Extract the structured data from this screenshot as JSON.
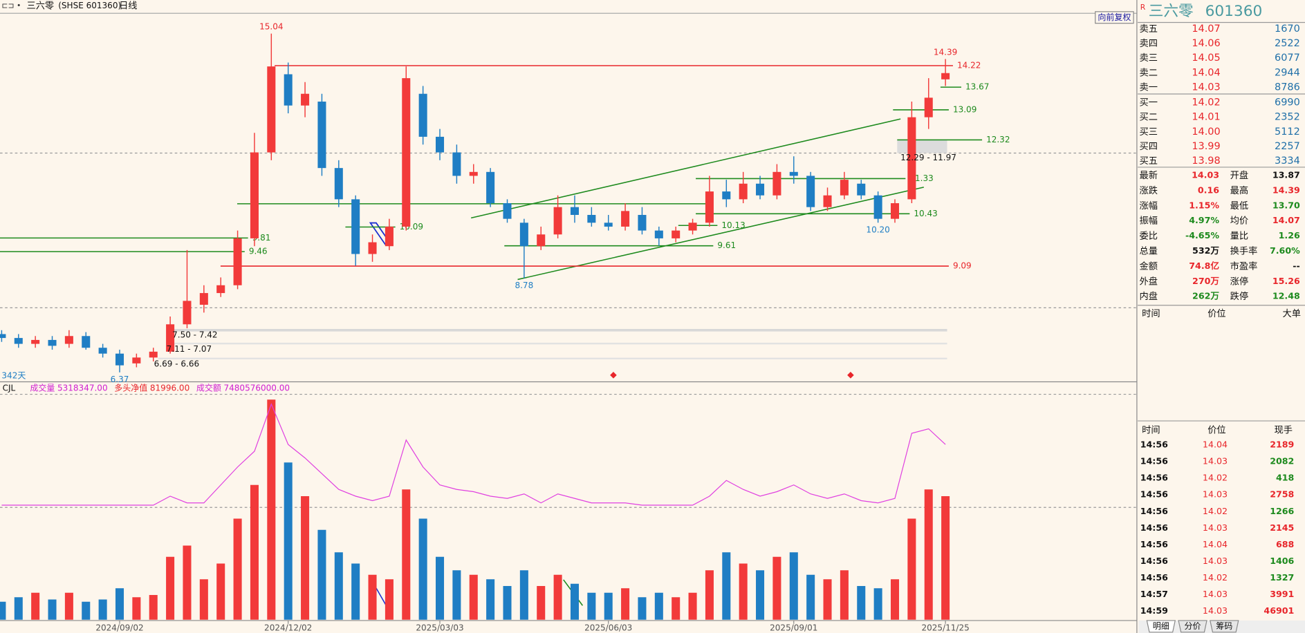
{
  "toolbar": {
    "name": "三六零",
    "code": "(SHSE 601360)",
    "period": "日线",
    "adjust": "向前复权"
  },
  "chart_data": {
    "type": "candlestick",
    "categories": [
      null,
      null,
      null,
      null,
      null,
      null,
      null,
      "2024/09/02",
      null,
      null,
      null,
      null,
      null,
      null,
      null,
      null,
      null,
      "2024/12/02",
      null,
      null,
      null,
      null,
      null,
      null,
      null,
      null,
      "2025/03/03",
      null,
      null,
      null,
      null,
      null,
      null,
      null,
      null,
      null,
      "2025/06/03",
      null,
      null,
      null,
      null,
      null,
      null,
      null,
      null,
      null,
      null,
      "2025/09/01",
      null,
      null,
      null,
      null,
      null,
      null,
      null,
      null,
      "2025/11/25"
    ],
    "open": [
      7.35,
      7.25,
      7.1,
      7.2,
      7.1,
      7.3,
      7.0,
      6.85,
      6.6,
      6.75,
      6.9,
      7.6,
      8.1,
      8.4,
      8.6,
      9.8,
      12.0,
      14.0,
      13.2,
      13.3,
      11.6,
      10.8,
      9.4,
      9.6,
      10.1,
      13.5,
      12.4,
      12.0,
      11.4,
      11.5,
      10.7,
      10.2,
      9.6,
      9.9,
      10.6,
      10.4,
      10.2,
      10.1,
      10.4,
      10.0,
      9.8,
      10.0,
      10.2,
      11.0,
      10.8,
      11.2,
      10.9,
      11.5,
      11.4,
      10.6,
      10.9,
      11.2,
      10.9,
      10.3,
      10.8,
      12.9,
      13.87
    ],
    "high": [
      7.45,
      7.35,
      7.3,
      7.3,
      7.45,
      7.4,
      7.1,
      6.95,
      6.85,
      7.0,
      7.8,
      9.5,
      8.6,
      8.8,
      10.0,
      12.5,
      15.04,
      14.3,
      13.8,
      13.5,
      11.8,
      10.9,
      9.9,
      10.3,
      14.2,
      13.7,
      12.6,
      12.2,
      11.7,
      11.6,
      10.8,
      10.3,
      10.1,
      10.9,
      10.9,
      10.6,
      10.4,
      10.7,
      10.6,
      10.1,
      10.1,
      10.3,
      11.4,
      11.3,
      11.5,
      11.4,
      11.7,
      11.9,
      11.5,
      11.1,
      11.5,
      11.3,
      11.0,
      10.8,
      13.3,
      13.9,
      14.39
    ],
    "low": [
      7.15,
      7.0,
      7.0,
      6.95,
      7.0,
      6.95,
      6.75,
      6.37,
      6.5,
      6.65,
      6.85,
      7.5,
      7.9,
      8.3,
      8.5,
      9.6,
      11.8,
      13.0,
      12.9,
      11.4,
      10.6,
      9.1,
      9.2,
      9.5,
      10.0,
      12.2,
      11.8,
      11.2,
      11.2,
      10.6,
      10.2,
      8.78,
      9.5,
      9.8,
      10.2,
      10.1,
      10.0,
      10.0,
      9.9,
      9.61,
      9.7,
      9.9,
      10.1,
      10.6,
      10.7,
      10.8,
      10.8,
      11.2,
      10.5,
      10.5,
      10.8,
      10.8,
      10.2,
      10.2,
      10.7,
      12.6,
      13.7
    ],
    "close": [
      7.25,
      7.1,
      7.2,
      7.05,
      7.3,
      7.0,
      6.85,
      6.55,
      6.75,
      6.9,
      7.6,
      8.2,
      8.4,
      8.6,
      9.8,
      12.0,
      14.2,
      13.2,
      13.5,
      11.6,
      10.8,
      9.4,
      9.7,
      10.1,
      13.9,
      12.4,
      12.0,
      11.4,
      11.5,
      10.7,
      10.3,
      9.6,
      9.9,
      10.6,
      10.4,
      10.2,
      10.1,
      10.5,
      10.0,
      9.8,
      10.0,
      10.2,
      11.0,
      10.8,
      11.2,
      10.9,
      11.5,
      11.4,
      10.6,
      10.9,
      11.3,
      10.9,
      10.3,
      10.7,
      12.9,
      13.4,
      14.03
    ],
    "ylim": [
      6.15,
      15.56
    ],
    "up_color": "#f23a3a",
    "down_color": "#1f7ec4",
    "levels": [
      {
        "value": 14.22,
        "color": "#e8262b"
      },
      {
        "value": 13.67,
        "color": "#1d8a1d"
      },
      {
        "value": 13.09,
        "color": "#1d8a1d"
      },
      {
        "value": 12.32,
        "color": "#1d8a1d"
      },
      {
        "value": 11.33,
        "color": "#1d8a1d"
      },
      {
        "value": 10.43,
        "color": "#1d8a1d"
      },
      {
        "value": 10.13,
        "color": "#1d8a1d"
      },
      {
        "value": 10.09,
        "color": "#1d8a1d"
      },
      {
        "value": 9.81,
        "color": "#1d8a1d"
      },
      {
        "value": 9.61,
        "color": "#1d8a1d"
      },
      {
        "value": 9.46,
        "color": "#1d8a1d"
      },
      {
        "value": 9.09,
        "color": "#e8262b"
      }
    ],
    "point_labels": [
      {
        "index": 16,
        "field": "high",
        "label": "15.04"
      },
      {
        "index": 56,
        "field": "high",
        "label": "14.39"
      },
      {
        "index": 31,
        "field": "low",
        "label": "8.78"
      },
      {
        "index": 7,
        "field": "low",
        "label": "6.37"
      },
      {
        "index": 52,
        "field": "low",
        "label": "10.20"
      }
    ],
    "ranges": [
      "12.29 - 11.97",
      "7.50 - 7.42",
      "7.11 - 7.07",
      "6.69 - 6.66"
    ],
    "day_count": "342天"
  },
  "volume": {
    "type": "bar",
    "ylim": [
      0,
      100
    ],
    "values": [
      8,
      10,
      12,
      9,
      12,
      8,
      9,
      14,
      10,
      11,
      28,
      33,
      18,
      25,
      45,
      60,
      98,
      70,
      55,
      40,
      30,
      25,
      20,
      18,
      58,
      45,
      28,
      22,
      20,
      18,
      15,
      22,
      15,
      20,
      16,
      12,
      12,
      14,
      10,
      12,
      10,
      12,
      22,
      30,
      25,
      22,
      28,
      30,
      20,
      18,
      22,
      15,
      14,
      18,
      45,
      58,
      55
    ],
    "line": [
      51,
      51,
      51,
      51,
      51,
      51,
      51,
      51,
      51,
      51,
      55,
      52,
      52,
      60,
      68,
      75,
      96,
      78,
      72,
      65,
      58,
      55,
      53,
      55,
      80,
      68,
      60,
      58,
      57,
      55,
      54,
      56,
      52,
      56,
      54,
      52,
      52,
      52,
      51,
      51,
      51,
      51,
      55,
      62,
      58,
      55,
      57,
      60,
      56,
      54,
      56,
      53,
      52,
      54,
      83,
      85,
      78
    ],
    "line_color": "#e040e0",
    "indicator": "CJL",
    "legend": [
      {
        "label": "成交量",
        "value": "5318347.00",
        "color": "#d020d0"
      },
      {
        "label": "多头净值",
        "value": "81996.00",
        "color": "#e8262b"
      },
      {
        "label": "成交额",
        "value": "7480576000.00",
        "color": "#d020d0"
      }
    ]
  },
  "quote": {
    "flag": "R",
    "name": "三六零",
    "code": "601360",
    "book": [
      {
        "label": "卖五",
        "price": "14.07",
        "volume": "1670"
      },
      {
        "label": "卖四",
        "price": "14.06",
        "volume": "2522"
      },
      {
        "label": "卖三",
        "price": "14.05",
        "volume": "6077"
      },
      {
        "label": "卖二",
        "price": "14.04",
        "volume": "2944"
      },
      {
        "label": "卖一",
        "price": "14.03",
        "volume": "8786"
      },
      {
        "label": "买一",
        "price": "14.02",
        "volume": "6990"
      },
      {
        "label": "买二",
        "price": "14.01",
        "volume": "2352"
      },
      {
        "label": "买三",
        "price": "14.00",
        "volume": "5112"
      },
      {
        "label": "买四",
        "price": "13.99",
        "volume": "2257"
      },
      {
        "label": "买五",
        "price": "13.98",
        "volume": "3334"
      }
    ],
    "stats": [
      [
        {
          "label": "最新",
          "value": "14.03",
          "color": "#e8262b"
        },
        {
          "label": "开盘",
          "value": "13.87",
          "color": "#111"
        }
      ],
      [
        {
          "label": "涨跌",
          "value": "0.16",
          "color": "#e8262b"
        },
        {
          "label": "最高",
          "value": "14.39",
          "color": "#e8262b"
        }
      ],
      [
        {
          "label": "涨幅",
          "value": "1.15%",
          "color": "#e8262b"
        },
        {
          "label": "最低",
          "value": "13.70",
          "color": "#1d8a1d"
        }
      ],
      [
        {
          "label": "振幅",
          "value": "4.97%",
          "color": "#1d8a1d"
        },
        {
          "label": "均价",
          "value": "14.07",
          "color": "#e8262b"
        }
      ],
      [
        {
          "label": "委比",
          "value": "-4.65%",
          "color": "#1d8a1d"
        },
        {
          "label": "量比",
          "value": "1.26",
          "color": "#1d8a1d"
        }
      ],
      [
        {
          "label": "总量",
          "value": "532万",
          "color": "#111"
        },
        {
          "label": "换手率",
          "value": "7.60%",
          "color": "#1d8a1d"
        }
      ],
      [
        {
          "label": "金额",
          "value": "74.8亿",
          "color": "#e8262b"
        },
        {
          "label": "市盈率",
          "value": "--",
          "color": "#111"
        }
      ],
      [
        {
          "label": "外盘",
          "value": "270万",
          "color": "#e8262b"
        },
        {
          "label": "涨停",
          "value": "15.26",
          "color": "#e8262b"
        }
      ],
      [
        {
          "label": "内盘",
          "value": "262万",
          "color": "#1d8a1d"
        },
        {
          "label": "跌停",
          "value": "12.48",
          "color": "#1d8a1d"
        }
      ]
    ],
    "big_header": [
      "时间",
      "价位",
      "大单"
    ],
    "ticks_header": [
      "时间",
      "价位",
      "现手"
    ],
    "ticks": [
      {
        "time": "14:56",
        "price": "14.04",
        "volume": "2189",
        "color": "#e8262b"
      },
      {
        "time": "14:56",
        "price": "14.03",
        "volume": "2082",
        "color": "#1d8a1d"
      },
      {
        "time": "14:56",
        "price": "14.02",
        "volume": "418",
        "color": "#1d8a1d"
      },
      {
        "time": "14:56",
        "price": "14.03",
        "volume": "2758",
        "color": "#e8262b"
      },
      {
        "time": "14:56",
        "price": "14.02",
        "volume": "1266",
        "color": "#1d8a1d"
      },
      {
        "time": "14:56",
        "price": "14.03",
        "volume": "2145",
        "color": "#e8262b"
      },
      {
        "time": "14:56",
        "price": "14.04",
        "volume": "688",
        "color": "#e8262b"
      },
      {
        "time": "14:56",
        "price": "14.03",
        "volume": "1406",
        "color": "#1d8a1d"
      },
      {
        "time": "14:56",
        "price": "14.02",
        "volume": "1327",
        "color": "#1d8a1d"
      },
      {
        "time": "14:57",
        "price": "14.03",
        "volume": "3991",
        "color": "#e8262b"
      },
      {
        "time": "14:59",
        "price": "14.03",
        "volume": "46901",
        "color": "#e8262b"
      }
    ],
    "tabs": [
      "明细",
      "分价",
      "筹码"
    ]
  }
}
